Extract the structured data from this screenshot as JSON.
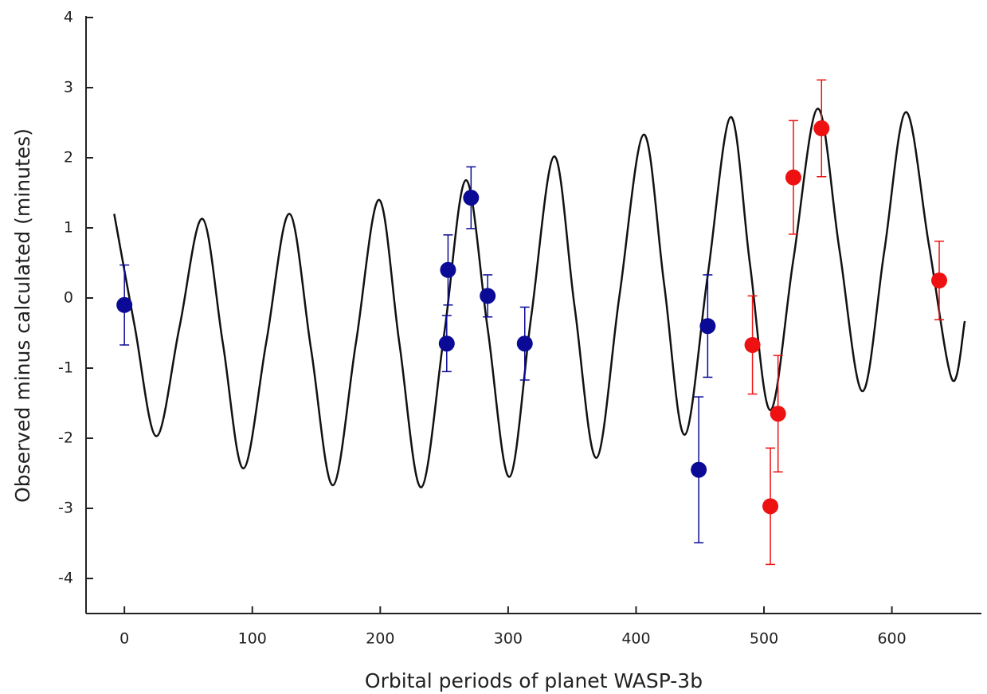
{
  "chart_data": {
    "type": "scatter",
    "x_label": "Orbital periods of planet WASP-3b",
    "y_label": "Observed minus calculated (minutes)",
    "xlim": [
      -30,
      670
    ],
    "ylim": [
      -4.5,
      4
    ],
    "xticks": [
      0,
      100,
      200,
      300,
      400,
      500,
      600
    ],
    "yticks": [
      -4,
      -3,
      -2,
      -1,
      0,
      1,
      2,
      3,
      4
    ],
    "series": [
      {
        "style": "line",
        "color": "#111111",
        "x": [
          -8,
          8,
          25,
          43,
          61,
          77,
          93,
          111,
          129,
          146,
          163,
          181,
          199,
          215,
          232,
          250,
          267,
          284,
          301,
          318,
          336,
          352,
          369,
          387,
          406,
          422,
          438,
          456,
          474,
          489,
          505,
          523,
          542,
          559,
          577,
          594,
          611,
          629,
          647,
          657
        ],
        "values": [
          1.2,
          -0.4,
          -1.97,
          -0.42,
          1.13,
          -0.65,
          -2.43,
          -0.62,
          1.2,
          -0.74,
          -2.67,
          -0.64,
          1.4,
          -0.65,
          -2.7,
          -0.51,
          1.68,
          -0.44,
          -2.55,
          -0.27,
          2.02,
          -0.13,
          -2.28,
          0.03,
          2.33,
          0.19,
          -1.95,
          0.32,
          2.58,
          0.49,
          -1.6,
          0.55,
          2.7,
          0.69,
          -1.33,
          0.66,
          2.65,
          0.75,
          -1.16,
          -0.33
        ]
      },
      {
        "style": "points",
        "color": "#0a0a96",
        "x": [
          0,
          252,
          253,
          271,
          284,
          313,
          449,
          456
        ],
        "values": [
          -0.1,
          -0.65,
          0.4,
          1.43,
          0.03,
          -0.65,
          -2.45,
          -0.4
        ],
        "errors": [
          0.57,
          0.4,
          0.5,
          0.44,
          0.3,
          0.52,
          1.04,
          0.73
        ]
      },
      {
        "style": "points",
        "color": "#ee1111",
        "x": [
          491,
          505,
          511,
          523,
          545,
          637
        ],
        "values": [
          -0.67,
          -2.97,
          -1.65,
          1.72,
          2.42,
          0.25
        ],
        "errors": [
          0.7,
          0.83,
          0.83,
          0.81,
          0.69,
          0.56
        ]
      }
    ]
  }
}
